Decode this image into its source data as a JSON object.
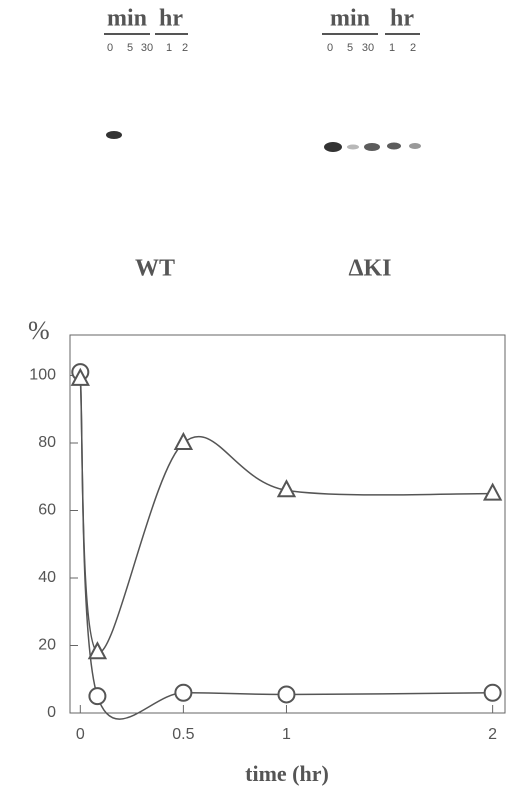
{
  "blots": [
    {
      "label": "WT",
      "groups": [
        "min",
        "hr"
      ],
      "lanes": [
        "0",
        "5",
        "30",
        "1",
        "2"
      ]
    },
    {
      "label": "ΔKI",
      "groups": [
        "min",
        "hr"
      ],
      "lanes": [
        "0",
        "5",
        "30",
        "1",
        "2"
      ]
    }
  ],
  "chart_data": {
    "type": "scatter",
    "xlabel": "time   (hr)",
    "ylabel": "%",
    "x": [
      0,
      0.083,
      0.5,
      1,
      2
    ],
    "series": [
      {
        "marker": "circle",
        "color": "#555",
        "values": [
          101,
          5,
          6,
          5.5,
          6
        ]
      },
      {
        "marker": "triangle",
        "color": "#555",
        "values": [
          99,
          18,
          80,
          66,
          65
        ]
      }
    ],
    "xlim": [
      -0.05,
      2.06
    ],
    "ylim": [
      0,
      112
    ],
    "xticks": [
      0,
      0.5,
      1,
      2
    ],
    "yticks": [
      0,
      20,
      40,
      60,
      80,
      100
    ]
  }
}
